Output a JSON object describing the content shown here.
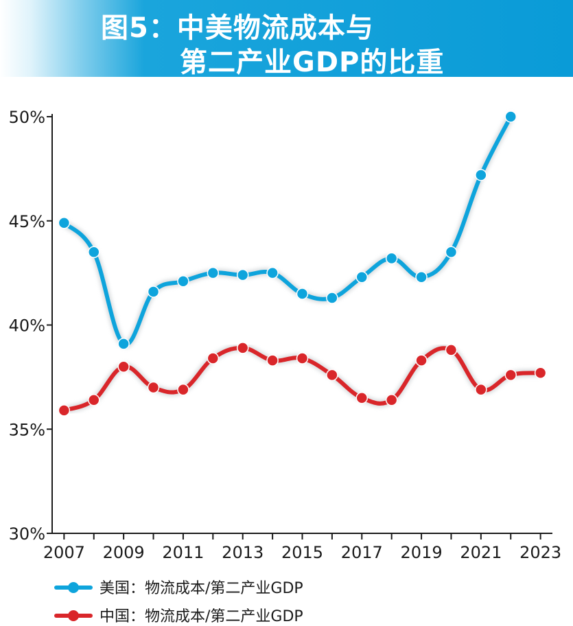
{
  "title": {
    "line1": "图5：中美物流成本与",
    "line2": "第二产业GDP的比重"
  },
  "colors": {
    "banner": "#0a9bd7",
    "us": "#0ea4dc",
    "china": "#d9262a",
    "axis": "#1a1a1a"
  },
  "chart_data": {
    "type": "line",
    "title": "图5：中美物流成本与第二产业GDP的比重",
    "xlabel": "",
    "ylabel": "",
    "x_range": [
      2006.6,
      2023.4
    ],
    "ylim": [
      30,
      50
    ],
    "yticks": [
      "30%",
      "35%",
      "40%",
      "45%",
      "50%"
    ],
    "xticks": [
      "2007",
      "2009",
      "2011",
      "2013",
      "2015",
      "2017",
      "2019",
      "2021",
      "2023"
    ],
    "grid": false,
    "legend_position": "bottom-left",
    "series": [
      {
        "name": "美国：物流成本/第二产业GDP",
        "color": "#0ea4dc",
        "x": [
          2007,
          2008,
          2009,
          2010,
          2011,
          2012,
          2013,
          2014,
          2015,
          2016,
          2017,
          2018,
          2019,
          2020,
          2021,
          2022
        ],
        "values": [
          44.9,
          43.5,
          39.1,
          41.6,
          42.1,
          42.5,
          42.4,
          42.5,
          41.5,
          41.3,
          42.3,
          43.2,
          42.3,
          43.5,
          47.2,
          50.0
        ]
      },
      {
        "name": "中国：物流成本/第二产业GDP",
        "color": "#d9262a",
        "x": [
          2007,
          2008,
          2009,
          2010,
          2011,
          2012,
          2013,
          2014,
          2015,
          2016,
          2017,
          2018,
          2019,
          2020,
          2021,
          2022,
          2023
        ],
        "values": [
          35.9,
          36.4,
          38.0,
          37.0,
          36.9,
          38.4,
          38.9,
          38.3,
          38.4,
          37.6,
          36.5,
          36.4,
          38.3,
          38.8,
          36.9,
          37.6,
          37.7
        ]
      }
    ]
  }
}
